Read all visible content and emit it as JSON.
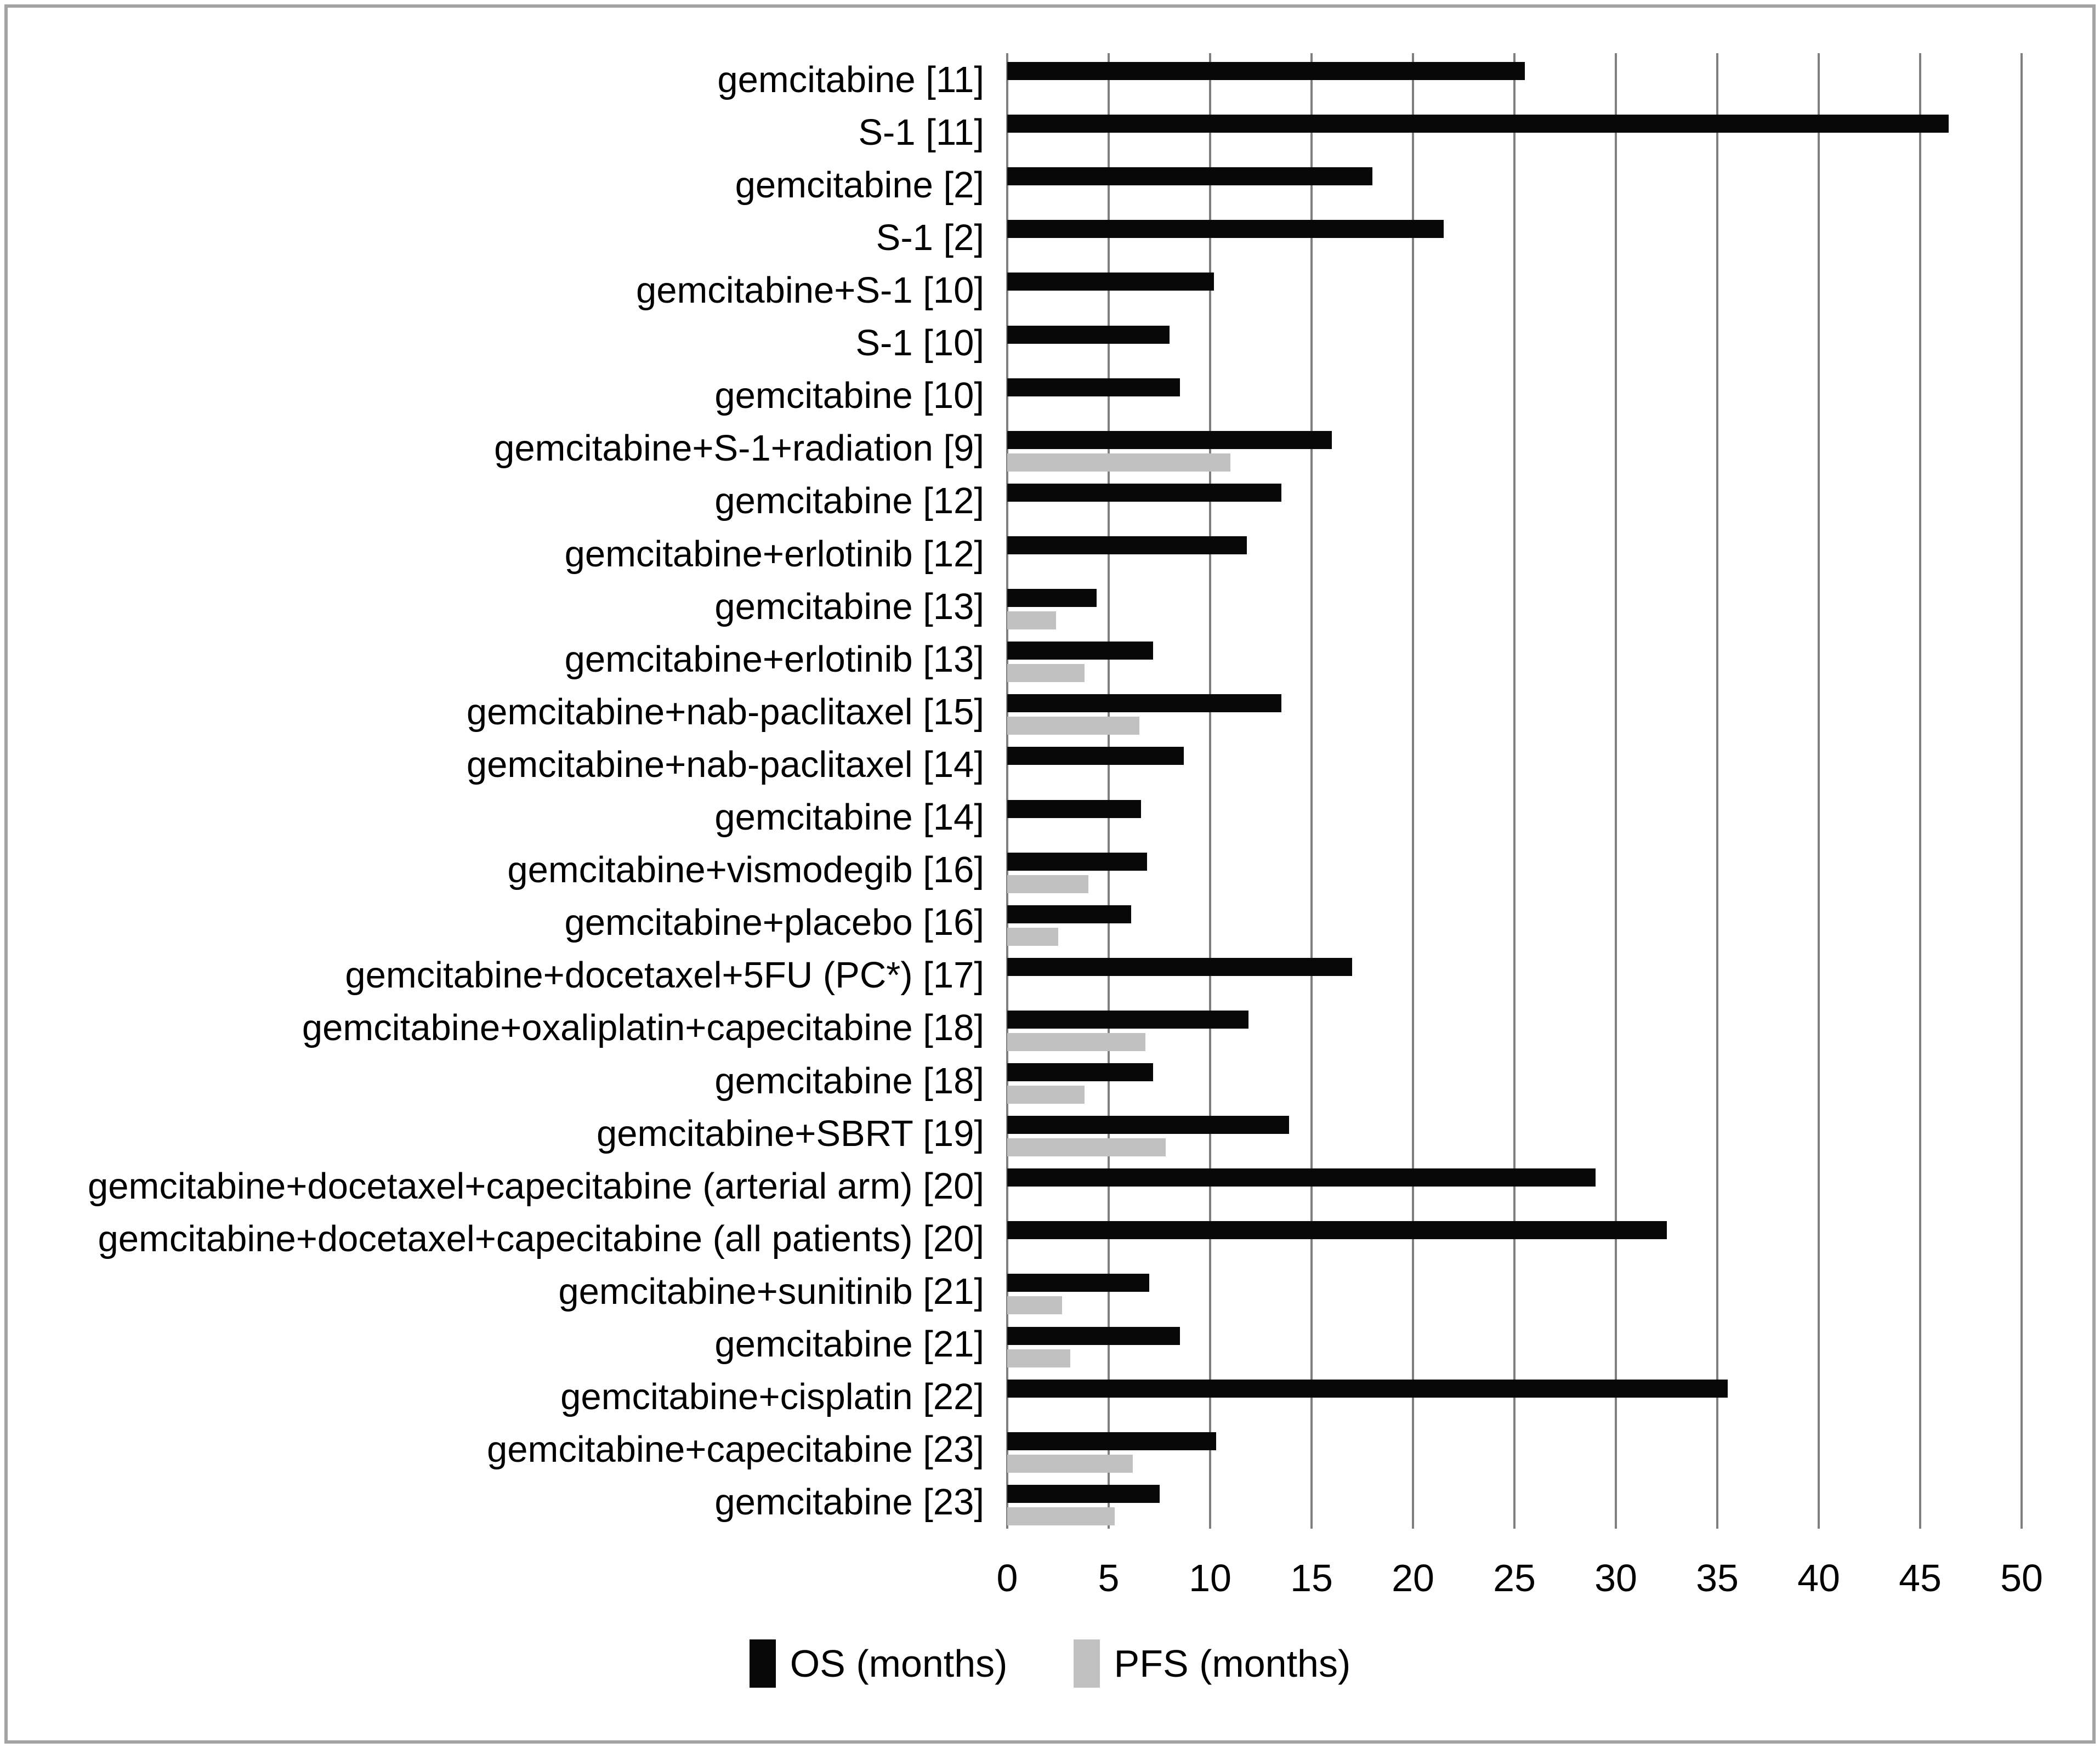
{
  "chart_data": {
    "type": "bar",
    "orientation": "horizontal",
    "title": "",
    "xlabel": "",
    "ylabel": "",
    "xlim": [
      0,
      50
    ],
    "xtick_step": 5,
    "xticks": [
      0,
      5,
      10,
      15,
      20,
      25,
      30,
      35,
      40,
      45,
      50
    ],
    "grid": "vertical-major",
    "legend_position": "bottom-center",
    "categories": [
      "gemcitabine [11]",
      "S-1 [11]",
      "gemcitabine [2]",
      "S-1 [2]",
      "gemcitabine+S-1 [10]",
      "S-1 [10]",
      "gemcitabine [10]",
      "gemcitabine+S-1+radiation [9]",
      "gemcitabine [12]",
      "gemcitabine+erlotinib [12]",
      "gemcitabine [13]",
      "gemcitabine+erlotinib [13]",
      "gemcitabine+nab-paclitaxel [15]",
      "gemcitabine+nab-paclitaxel [14]",
      "gemcitabine [14]",
      "gemcitabine+vismodegib [16]",
      "gemcitabine+placebo [16]",
      "gemcitabine+docetaxel+5FU (PC*) [17]",
      "gemcitabine+oxaliplatin+capecitabine [18]",
      "gemcitabine [18]",
      "gemcitabine+SBRT [19]",
      "gemcitabine+docetaxel+capecitabine (arterial arm) [20]",
      "gemcitabine+docetaxel+capecitabine (all patients) [20]",
      "gemcitabine+sunitinib [21]",
      "gemcitabine [21]",
      "gemcitabine+cisplatin [22]",
      "gemcitabine+capecitabine [23]",
      "gemcitabine [23]"
    ],
    "series": [
      {
        "name": "OS (months)",
        "color": "#080808",
        "values": [
          25.5,
          46.4,
          18.0,
          21.5,
          10.2,
          8.0,
          8.5,
          16.0,
          13.5,
          11.8,
          4.4,
          7.2,
          13.5,
          8.7,
          6.6,
          6.9,
          6.1,
          17.0,
          11.9,
          7.2,
          13.9,
          29.0,
          32.5,
          7.0,
          8.5,
          35.5,
          10.3,
          7.5
        ]
      },
      {
        "name": "PFS (months)",
        "color": "#c1c1c1",
        "values": [
          null,
          null,
          null,
          null,
          null,
          null,
          null,
          11.0,
          null,
          null,
          2.4,
          3.8,
          6.5,
          null,
          null,
          4.0,
          2.5,
          null,
          6.8,
          3.8,
          7.8,
          null,
          null,
          2.7,
          3.1,
          null,
          6.2,
          5.3
        ]
      }
    ],
    "colors": {
      "os_bar": "#080808",
      "pfs_bar": "#c1c1c1",
      "gridline": "#7f7f7f",
      "frame_border": "#a3a3a3",
      "background": "#ffffff"
    }
  }
}
